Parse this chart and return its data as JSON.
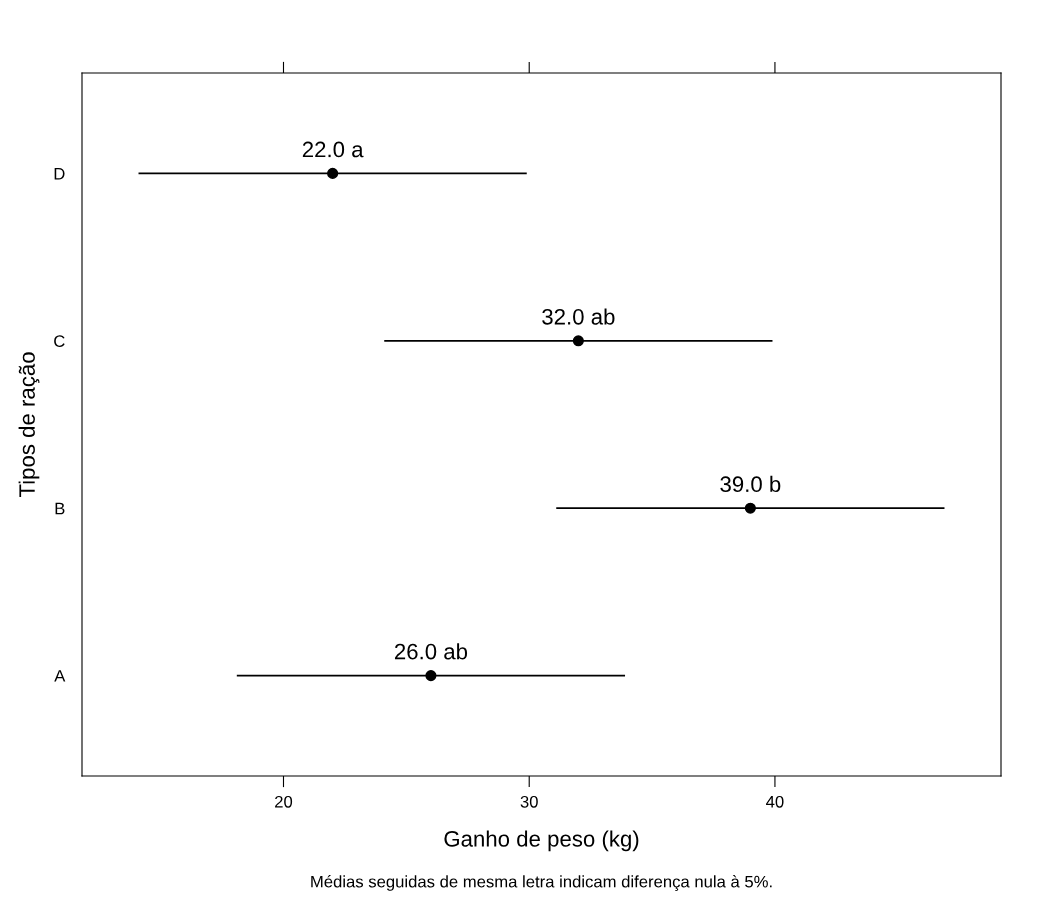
{
  "chart_data": {
    "type": "scatter",
    "orientation": "horizontal",
    "xlabel": "Ganho de peso (kg)",
    "ylabel": "Tipos de ração",
    "categories": [
      "D",
      "C",
      "B",
      "A"
    ],
    "series": [
      {
        "color": "#000000",
        "values": [
          22.0,
          32.0,
          39.0,
          26.0
        ],
        "errors": [
          7.9,
          7.9,
          7.9,
          7.9
        ],
        "value_labels": [
          "22.0 a",
          "32.0 ab",
          "39.0 b",
          "26.0 ab"
        ]
      }
    ],
    "xlim": [
      11.8,
      49.2
    ],
    "xticks": [
      20,
      30,
      40
    ],
    "marker": "circle",
    "grid": false,
    "legend": false,
    "annotations": [
      "Médias seguidas de mesma letra indicam diferença nula à 5%."
    ]
  }
}
